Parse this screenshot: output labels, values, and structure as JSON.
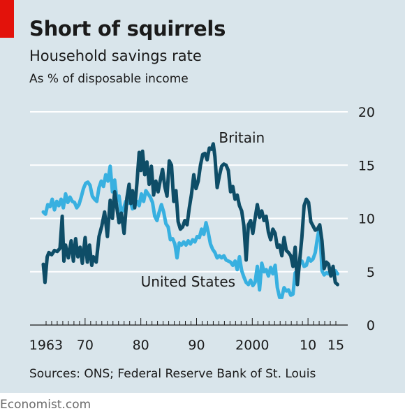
{
  "header": {
    "title": "Short of squirrels",
    "subtitle": "Household savings rate",
    "units": "As % of disposable income"
  },
  "footer": {
    "source": "Sources: ONS; Federal Reserve Bank of St. Louis",
    "brand": "Economist.com"
  },
  "colors": {
    "background": "#d9e5eb",
    "brand_red": "#e3120b",
    "britain": "#0e4d67",
    "united_states": "#38b0e0",
    "gridline": "#ffffff",
    "axis": "#1a1a1a"
  },
  "chart_data": {
    "type": "line",
    "title": "Household savings rate",
    "ylabel": "As % of disposable income",
    "xlim": [
      1963,
      2016
    ],
    "ylim": [
      0,
      20
    ],
    "yticks": [
      0,
      5,
      10,
      15,
      20
    ],
    "xtick_labels": [
      {
        "year": 1963,
        "label": "1963"
      },
      {
        "year": 1970,
        "label": "70"
      },
      {
        "year": 1980,
        "label": "80"
      },
      {
        "year": 1990,
        "label": "90"
      },
      {
        "year": 2000,
        "label": "2000"
      },
      {
        "year": 2010,
        "label": "10"
      },
      {
        "year": 2015,
        "label": "15"
      }
    ],
    "grid": true,
    "series": [
      {
        "name": "Britain",
        "color": "#0e4d67",
        "label_position": {
          "year": 1994.5,
          "value": 17.1
        },
        "points": [
          [
            1963.0,
            5.7
          ],
          [
            1963.3,
            4.0
          ],
          [
            1963.7,
            6.4
          ],
          [
            1964.0,
            6.8
          ],
          [
            1964.5,
            6.6
          ],
          [
            1965.0,
            7.0
          ],
          [
            1965.5,
            6.9
          ],
          [
            1966.0,
            7.2
          ],
          [
            1966.4,
            10.2
          ],
          [
            1966.7,
            6.0
          ],
          [
            1967.0,
            7.5
          ],
          [
            1967.5,
            6.3
          ],
          [
            1968.0,
            7.9
          ],
          [
            1968.4,
            6.0
          ],
          [
            1968.8,
            8.1
          ],
          [
            1969.2,
            6.4
          ],
          [
            1969.6,
            7.3
          ],
          [
            1970.0,
            5.8
          ],
          [
            1970.5,
            8.2
          ],
          [
            1970.9,
            5.9
          ],
          [
            1971.3,
            7.5
          ],
          [
            1971.7,
            5.6
          ],
          [
            1972.0,
            6.4
          ],
          [
            1972.5,
            5.9
          ],
          [
            1973.0,
            8.3
          ],
          [
            1973.5,
            9.3
          ],
          [
            1974.0,
            10.6
          ],
          [
            1974.5,
            8.3
          ],
          [
            1975.0,
            11.7
          ],
          [
            1975.4,
            10.0
          ],
          [
            1975.8,
            12.5
          ],
          [
            1976.2,
            11.0
          ],
          [
            1976.6,
            9.6
          ],
          [
            1977.0,
            10.5
          ],
          [
            1977.5,
            8.6
          ],
          [
            1978.0,
            11.9
          ],
          [
            1978.4,
            13.2
          ],
          [
            1978.7,
            11.4
          ],
          [
            1979.0,
            12.6
          ],
          [
            1979.4,
            11.0
          ],
          [
            1979.8,
            13.3
          ],
          [
            1980.2,
            16.2
          ],
          [
            1980.5,
            14.5
          ],
          [
            1980.8,
            16.3
          ],
          [
            1981.2,
            14.1
          ],
          [
            1981.6,
            15.3
          ],
          [
            1982.0,
            13.2
          ],
          [
            1982.4,
            14.9
          ],
          [
            1982.8,
            12.2
          ],
          [
            1983.2,
            13.5
          ],
          [
            1983.6,
            12.5
          ],
          [
            1984.0,
            13.6
          ],
          [
            1984.4,
            14.6
          ],
          [
            1984.8,
            13.0
          ],
          [
            1985.2,
            12.1
          ],
          [
            1985.6,
            15.4
          ],
          [
            1986.0,
            15.0
          ],
          [
            1986.4,
            11.6
          ],
          [
            1986.8,
            12.6
          ],
          [
            1987.2,
            9.7
          ],
          [
            1987.6,
            9.0
          ],
          [
            1988.0,
            9.2
          ],
          [
            1988.4,
            9.8
          ],
          [
            1988.8,
            9.4
          ],
          [
            1989.2,
            11.0
          ],
          [
            1989.6,
            12.3
          ],
          [
            1990.0,
            14.1
          ],
          [
            1990.4,
            12.8
          ],
          [
            1990.8,
            13.5
          ],
          [
            1991.2,
            15.0
          ],
          [
            1991.6,
            16.0
          ],
          [
            1992.0,
            16.1
          ],
          [
            1992.4,
            15.5
          ],
          [
            1992.8,
            16.6
          ],
          [
            1993.2,
            16.5
          ],
          [
            1993.5,
            17.0
          ],
          [
            1993.8,
            15.8
          ],
          [
            1994.2,
            12.9
          ],
          [
            1994.6,
            14.0
          ],
          [
            1995.0,
            14.9
          ],
          [
            1995.4,
            15.1
          ],
          [
            1995.8,
            15.0
          ],
          [
            1996.2,
            14.5
          ],
          [
            1996.6,
            12.5
          ],
          [
            1997.0,
            13.0
          ],
          [
            1997.4,
            11.8
          ],
          [
            1997.8,
            12.2
          ],
          [
            1998.2,
            11.2
          ],
          [
            1998.6,
            10.7
          ],
          [
            1999.0,
            9.3
          ],
          [
            1999.4,
            6.1
          ],
          [
            1999.8,
            9.4
          ],
          [
            2000.2,
            9.8
          ],
          [
            2000.6,
            8.6
          ],
          [
            2001.0,
            10.0
          ],
          [
            2001.4,
            11.3
          ],
          [
            2001.8,
            10.1
          ],
          [
            2002.2,
            10.7
          ],
          [
            2002.6,
            9.8
          ],
          [
            2003.0,
            10.2
          ],
          [
            2003.4,
            8.7
          ],
          [
            2003.8,
            8.0
          ],
          [
            2004.2,
            9.0
          ],
          [
            2004.6,
            8.6
          ],
          [
            2005.0,
            7.3
          ],
          [
            2005.4,
            7.5
          ],
          [
            2005.8,
            6.5
          ],
          [
            2006.2,
            8.2
          ],
          [
            2006.6,
            7.0
          ],
          [
            2007.0,
            6.8
          ],
          [
            2007.4,
            6.5
          ],
          [
            2007.8,
            5.5
          ],
          [
            2008.2,
            7.3
          ],
          [
            2008.6,
            3.8
          ],
          [
            2009.0,
            6.0
          ],
          [
            2009.4,
            8.2
          ],
          [
            2009.8,
            11.2
          ],
          [
            2010.2,
            11.8
          ],
          [
            2010.6,
            11.5
          ],
          [
            2011.0,
            9.7
          ],
          [
            2011.4,
            9.3
          ],
          [
            2011.8,
            8.9
          ],
          [
            2012.2,
            9.0
          ],
          [
            2012.6,
            9.4
          ],
          [
            2013.0,
            7.9
          ],
          [
            2013.4,
            5.3
          ],
          [
            2013.8,
            5.9
          ],
          [
            2014.2,
            5.7
          ],
          [
            2014.6,
            4.6
          ],
          [
            2015.0,
            5.5
          ],
          [
            2015.4,
            4.0
          ],
          [
            2015.8,
            3.8
          ]
        ]
      },
      {
        "name": "United States",
        "color": "#38b0e0",
        "label_position": {
          "year": 1980.5,
          "value": 3.6
        },
        "points": [
          [
            1963.0,
            10.6
          ],
          [
            1963.4,
            10.4
          ],
          [
            1963.8,
            11.3
          ],
          [
            1964.2,
            11.1
          ],
          [
            1964.6,
            11.8
          ],
          [
            1965.0,
            10.8
          ],
          [
            1965.4,
            11.6
          ],
          [
            1965.8,
            11.2
          ],
          [
            1966.2,
            11.8
          ],
          [
            1966.6,
            11.0
          ],
          [
            1967.0,
            12.3
          ],
          [
            1967.4,
            11.5
          ],
          [
            1967.8,
            12.0
          ],
          [
            1968.2,
            11.6
          ],
          [
            1968.6,
            11.5
          ],
          [
            1969.0,
            11.0
          ],
          [
            1969.4,
            11.3
          ],
          [
            1969.8,
            12.0
          ],
          [
            1970.2,
            12.8
          ],
          [
            1970.6,
            13.3
          ],
          [
            1971.0,
            13.4
          ],
          [
            1971.4,
            13.1
          ],
          [
            1971.8,
            12.1
          ],
          [
            1972.2,
            11.8
          ],
          [
            1972.6,
            11.6
          ],
          [
            1973.0,
            12.9
          ],
          [
            1973.4,
            13.5
          ],
          [
            1973.8,
            13.0
          ],
          [
            1974.2,
            14.1
          ],
          [
            1974.6,
            13.5
          ],
          [
            1975.0,
            14.9
          ],
          [
            1975.4,
            12.5
          ],
          [
            1975.8,
            13.6
          ],
          [
            1976.2,
            11.7
          ],
          [
            1976.6,
            12.1
          ],
          [
            1977.0,
            10.5
          ],
          [
            1977.4,
            10.9
          ],
          [
            1977.8,
            11.6
          ],
          [
            1978.2,
            11.4
          ],
          [
            1978.6,
            11.7
          ],
          [
            1979.0,
            10.9
          ],
          [
            1979.4,
            11.1
          ],
          [
            1979.8,
            11.6
          ],
          [
            1980.2,
            11.2
          ],
          [
            1980.6,
            12.3
          ],
          [
            1981.0,
            11.6
          ],
          [
            1981.4,
            12.6
          ],
          [
            1981.8,
            12.3
          ],
          [
            1982.2,
            12.0
          ],
          [
            1982.6,
            11.5
          ],
          [
            1983.0,
            10.2
          ],
          [
            1983.4,
            9.8
          ],
          [
            1983.8,
            10.6
          ],
          [
            1984.2,
            11.3
          ],
          [
            1984.6,
            10.6
          ],
          [
            1985.0,
            9.5
          ],
          [
            1985.4,
            9.2
          ],
          [
            1985.8,
            8.0
          ],
          [
            1986.2,
            8.1
          ],
          [
            1986.6,
            7.6
          ],
          [
            1987.0,
            6.3
          ],
          [
            1987.4,
            7.7
          ],
          [
            1987.8,
            7.5
          ],
          [
            1988.2,
            7.8
          ],
          [
            1988.6,
            7.5
          ],
          [
            1989.0,
            7.9
          ],
          [
            1989.4,
            7.6
          ],
          [
            1989.8,
            8.0
          ],
          [
            1990.2,
            7.8
          ],
          [
            1990.6,
            8.3
          ],
          [
            1991.0,
            8.2
          ],
          [
            1991.4,
            9.0
          ],
          [
            1991.8,
            8.5
          ],
          [
            1992.2,
            9.6
          ],
          [
            1992.6,
            8.7
          ],
          [
            1993.0,
            7.6
          ],
          [
            1993.4,
            7.1
          ],
          [
            1993.8,
            6.8
          ],
          [
            1994.2,
            6.3
          ],
          [
            1994.6,
            6.5
          ],
          [
            1995.0,
            6.3
          ],
          [
            1995.4,
            6.5
          ],
          [
            1995.8,
            6.1
          ],
          [
            1996.2,
            6.0
          ],
          [
            1996.6,
            5.9
          ],
          [
            1997.0,
            5.6
          ],
          [
            1997.4,
            6.0
          ],
          [
            1997.8,
            5.2
          ],
          [
            1998.2,
            6.4
          ],
          [
            1998.6,
            5.1
          ],
          [
            1999.0,
            4.5
          ],
          [
            1999.4,
            4.0
          ],
          [
            1999.8,
            3.8
          ],
          [
            2000.2,
            4.2
          ],
          [
            2000.6,
            3.7
          ],
          [
            2001.0,
            4.0
          ],
          [
            2001.4,
            5.5
          ],
          [
            2001.8,
            3.3
          ],
          [
            2002.2,
            5.8
          ],
          [
            2002.6,
            5.0
          ],
          [
            2003.0,
            5.2
          ],
          [
            2003.4,
            4.6
          ],
          [
            2003.8,
            5.4
          ],
          [
            2004.2,
            4.8
          ],
          [
            2004.6,
            5.6
          ],
          [
            2005.0,
            3.5
          ],
          [
            2005.4,
            2.6
          ],
          [
            2005.8,
            2.6
          ],
          [
            2006.2,
            3.5
          ],
          [
            2006.6,
            3.2
          ],
          [
            2007.0,
            3.3
          ],
          [
            2007.4,
            2.8
          ],
          [
            2007.8,
            2.9
          ],
          [
            2008.2,
            4.9
          ],
          [
            2008.6,
            4.8
          ],
          [
            2009.0,
            5.8
          ],
          [
            2009.4,
            6.0
          ],
          [
            2009.8,
            5.5
          ],
          [
            2010.2,
            5.6
          ],
          [
            2010.6,
            6.3
          ],
          [
            2011.0,
            6.0
          ],
          [
            2011.4,
            6.2
          ],
          [
            2011.8,
            6.8
          ],
          [
            2012.2,
            8.2
          ],
          [
            2012.6,
            9.3
          ],
          [
            2013.0,
            5.1
          ],
          [
            2013.4,
            4.7
          ],
          [
            2013.8,
            4.9
          ],
          [
            2014.2,
            4.8
          ],
          [
            2014.6,
            5.2
          ],
          [
            2015.0,
            4.9
          ],
          [
            2015.4,
            5.1
          ],
          [
            2015.8,
            4.8
          ]
        ]
      }
    ]
  }
}
